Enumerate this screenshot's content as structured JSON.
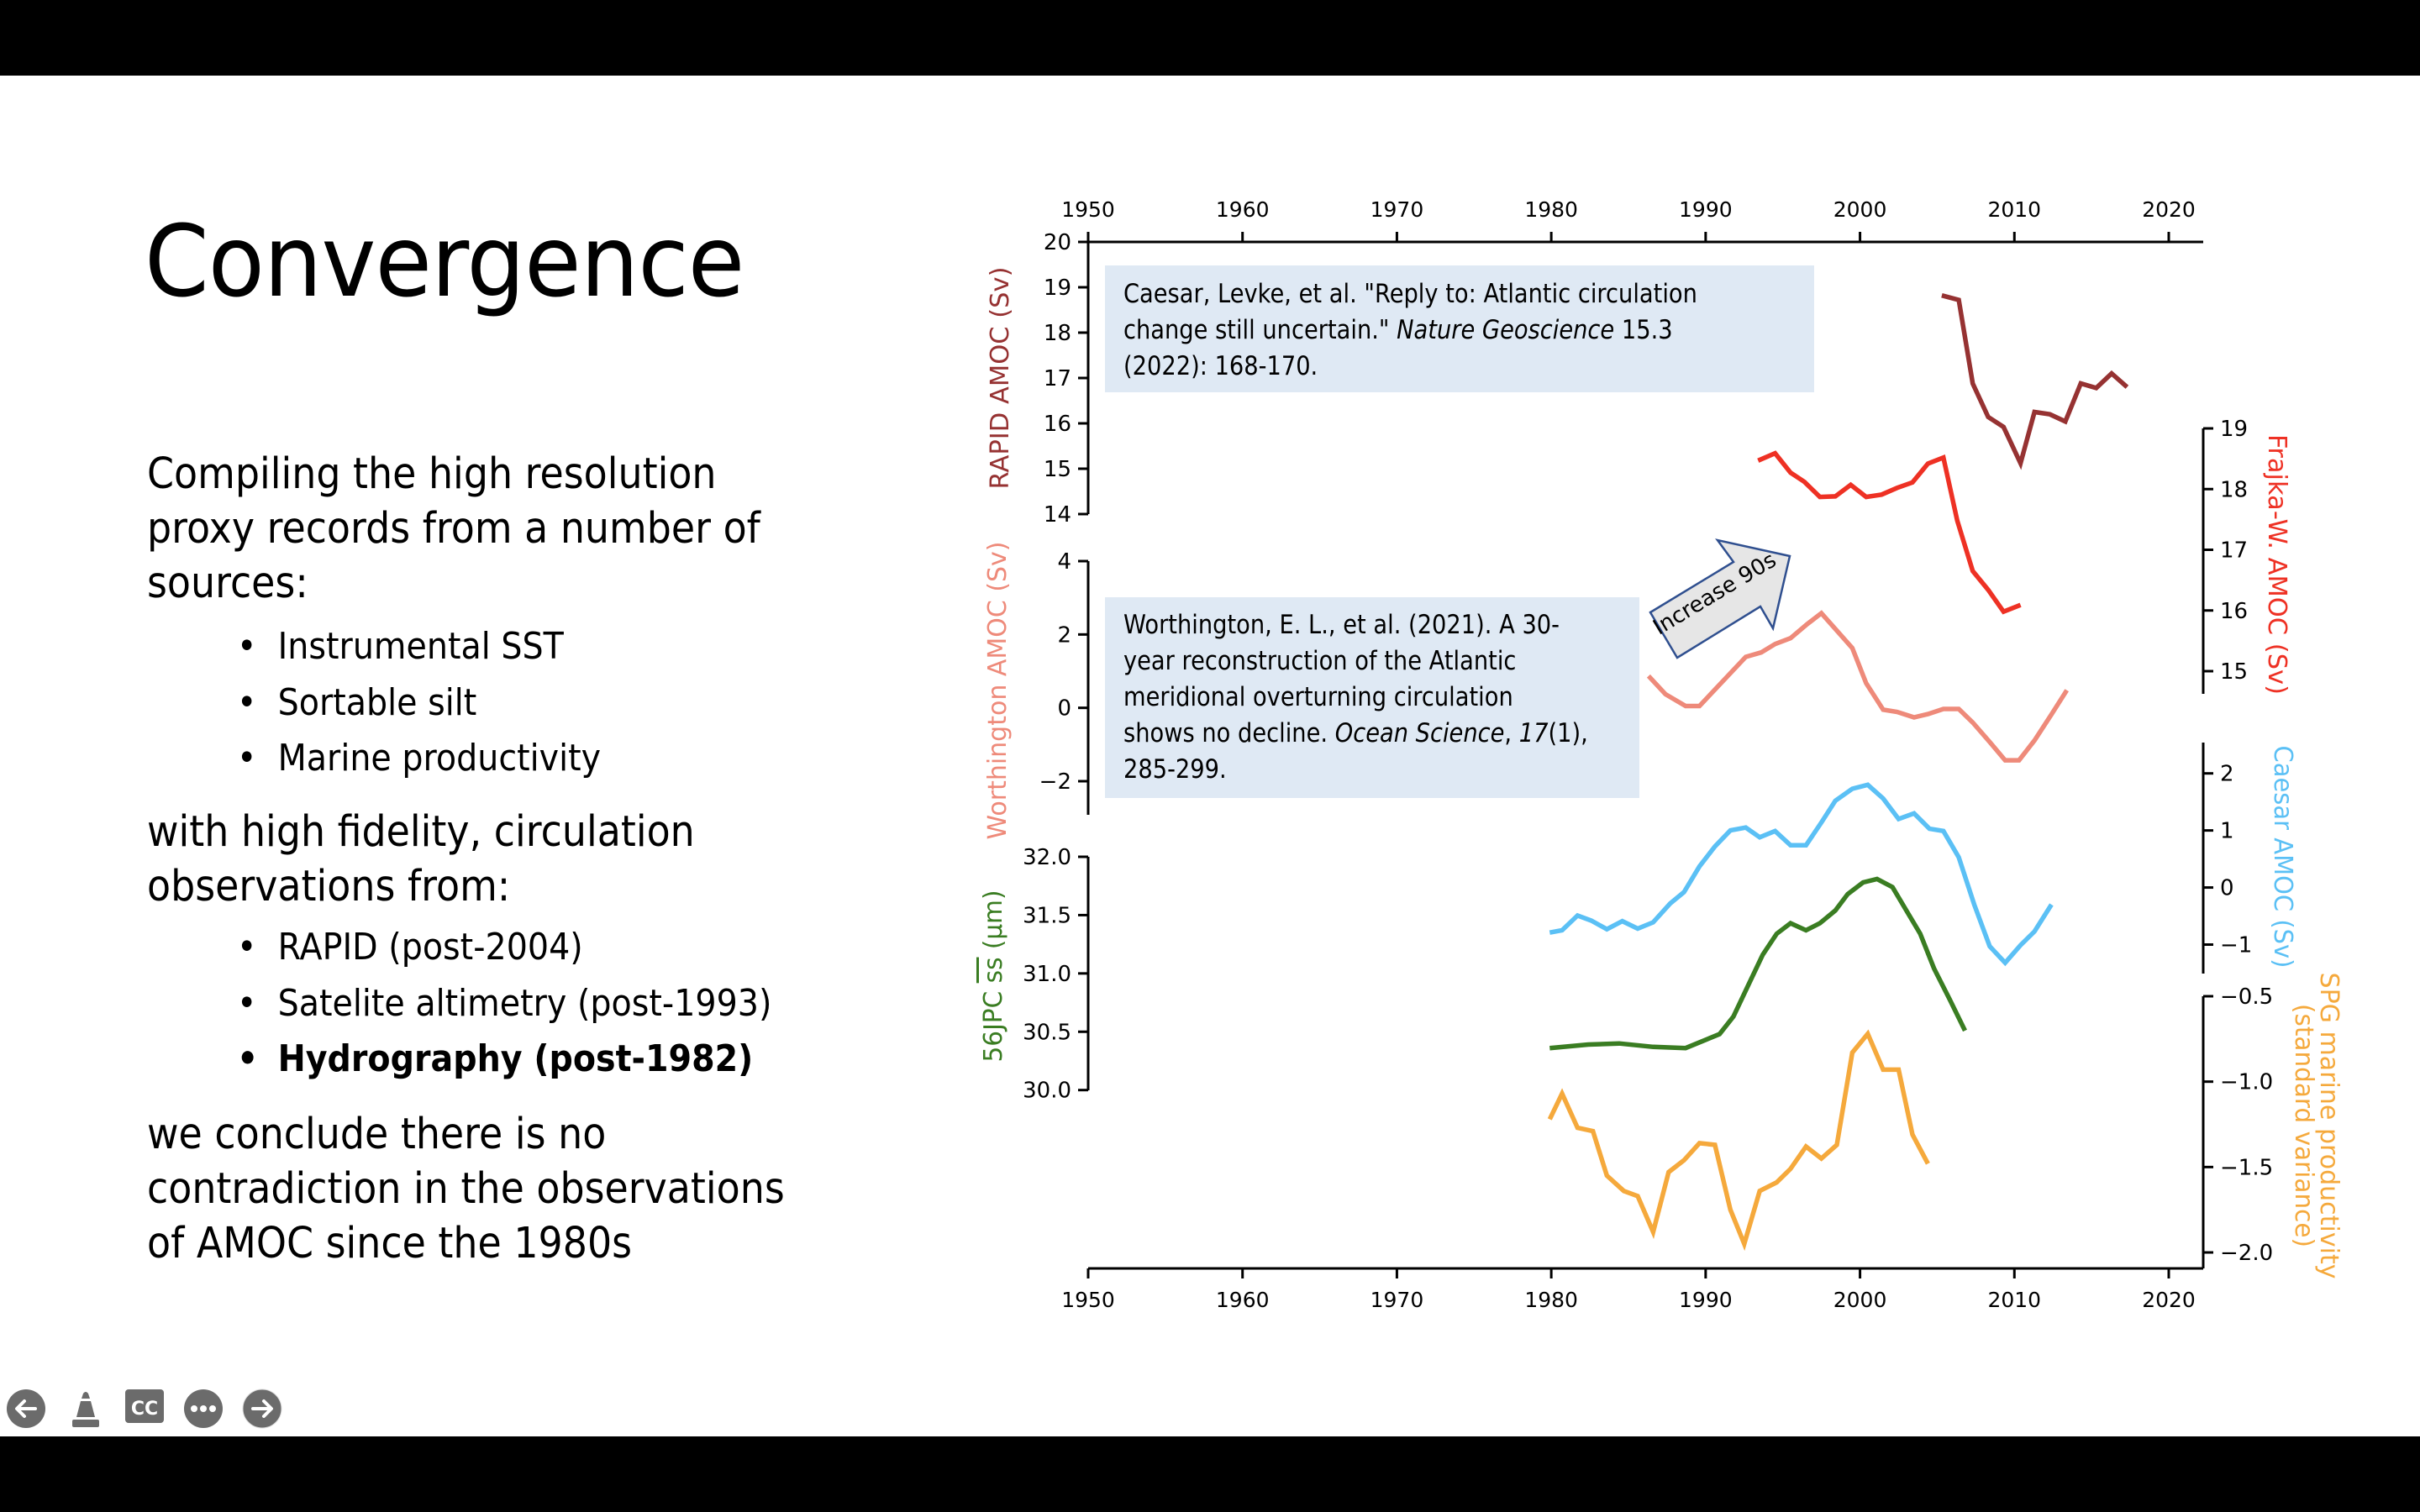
{
  "slide": {
    "title": "Convergence",
    "intro_lines": [
      "Compiling the high resolution",
      "proxy records from a number of",
      "sources:"
    ],
    "proxy_bullets": [
      "Instrumental SST",
      "Sortable silt",
      "Marine productivity"
    ],
    "middle_lines": [
      "with high fidelity, circulation",
      "observations from:"
    ],
    "observation_bullets": [
      "RAPID (post-2004)",
      "Satelite altimetry (post-1993)",
      "Hydrography (post-1982)"
    ],
    "conclusion_lines": [
      "we conclude there is no",
      "contradiction in the observations",
      "of AMOC since the 1980s"
    ],
    "bullet_glyph": "•"
  },
  "references": {
    "caesar": {
      "line1": "Caesar, Levke, et al. \"Reply to: Atlantic circulation",
      "line2_plain": "change still uncertain.\" ",
      "line2_italic": "Nature Geoscience",
      "line2_tail": " 15.3",
      "line3": "(2022): 168-170."
    },
    "worthington": {
      "line1": "Worthington, E. L., et al. (2021). A 30-",
      "line2": "year reconstruction of the Atlantic",
      "line3": "meridional overturning circulation",
      "line4_plain": "shows no decline. ",
      "line4_italic": "Ocean Science",
      "line4_mid": ", ",
      "line4_italic2": "17",
      "line4_tail": "(1),",
      "line5": "285-299."
    }
  },
  "annotation": {
    "arrow_label": "Increase 90s"
  },
  "controls": {
    "previous": "previous-slide",
    "pointer": "laser-pointer",
    "captions": "CC",
    "more": "more-options",
    "next": "next-slide"
  },
  "chart_data": {
    "type": "line",
    "title": "",
    "xlabel": "",
    "xlim": [
      1950,
      2023
    ],
    "x_ticks": [
      "1950",
      "1960",
      "1970",
      "1980",
      "1990",
      "2000",
      "2010",
      "2020"
    ],
    "x_tick_values": [
      1950,
      1960,
      1970,
      1980,
      1990,
      2000,
      2010,
      2020
    ],
    "grid": false,
    "series": [
      {
        "name": "RAPID AMOC",
        "axis_label": "RAPID AMOC (Sv)",
        "axis_side": "left",
        "color": "#963232",
        "ylim": [
          14,
          20
        ],
        "y_ticks": [
          "20",
          "19",
          "18",
          "17",
          "16",
          "15",
          "14"
        ],
        "y_tick_values": [
          20,
          19,
          18,
          17,
          16,
          15,
          14
        ],
        "x": [
          2005.3,
          2006.4,
          2007.3,
          2008.3,
          2009.3,
          2010.4,
          2011.3,
          2012.3,
          2013.3,
          2014.3,
          2015.3,
          2016.3,
          2017.3
        ],
        "y": [
          18.82,
          18.72,
          16.88,
          16.14,
          15.92,
          15.12,
          16.25,
          16.2,
          16.04,
          16.88,
          16.78,
          17.1,
          16.8
        ]
      },
      {
        "name": "Frajka-W. AMOC",
        "axis_label": "Frajka-W. AMOC (Sv)",
        "axis_side": "right",
        "color": "#ee3124",
        "ylim": [
          14.6,
          19
        ],
        "y_ticks": [
          "19",
          "18",
          "17",
          "16",
          "15"
        ],
        "y_tick_values": [
          19,
          18,
          17,
          16,
          15
        ],
        "x": [
          1993.4,
          1994.5,
          1995.5,
          1996.4,
          1997.4,
          1998.4,
          1999.4,
          2000.4,
          2001.4,
          2002.4,
          2003.4,
          2004.4,
          2005.4,
          2006.3,
          2007.3,
          2008.3,
          2009.3,
          2010.4
        ],
        "y": [
          18.47,
          18.59,
          18.27,
          18.12,
          17.87,
          17.88,
          18.07,
          17.87,
          17.91,
          18.02,
          18.11,
          18.42,
          18.52,
          17.48,
          16.65,
          16.34,
          15.98,
          16.09
        ]
      },
      {
        "name": "Worthington AMOC",
        "axis_label": "Worthington AMOC (Sv)",
        "axis_side": "left",
        "color": "#ee8a7a",
        "ylim": [
          -2.9,
          4
        ],
        "y_ticks": [
          "4",
          "2",
          "0",
          "−2"
        ],
        "y_tick_values": [
          4,
          2,
          0,
          -2
        ],
        "x": [
          1986.3,
          1987.4,
          1988.7,
          1989.6,
          1992.6,
          1993.6,
          1994.5,
          1995.5,
          1996.6,
          1997.5,
          1999.5,
          2000.4,
          2001.5,
          2002.4,
          2003.5,
          2004.4,
          2005.4,
          2006.4,
          2007.3,
          2008.4,
          2009.4,
          2010.3,
          2011.3,
          2012.4,
          2013.4
        ],
        "y": [
          0.87,
          0.37,
          0.05,
          0.05,
          1.39,
          1.51,
          1.74,
          1.9,
          2.29,
          2.58,
          1.63,
          0.67,
          -0.05,
          -0.11,
          -0.26,
          -0.17,
          -0.03,
          -0.03,
          -0.4,
          -0.93,
          -1.43,
          -1.43,
          -0.89,
          -0.18,
          0.48
        ]
      },
      {
        "name": "Caesar AMOC",
        "axis_label": "Caesar AMOC (Sv)",
        "axis_side": "right",
        "color": "#5bc0f5",
        "ylim": [
          -1.5,
          2.5
        ],
        "y_ticks": [
          "2",
          "1",
          "0",
          "−1"
        ],
        "y_tick_values": [
          2,
          1,
          0,
          -1
        ],
        "x": [
          1979.9,
          1980.7,
          1981.7,
          1982.6,
          1983.6,
          1984.6,
          1985.6,
          1986.6,
          1987.7,
          1988.6,
          1989.6,
          1990.6,
          1991.6,
          1992.6,
          1993.5,
          1994.5,
          1995.5,
          1996.5,
          1997.5,
          1998.4,
          1999.5,
          2000.5,
          2001.5,
          2002.5,
          2003.5,
          2004.5,
          2005.4,
          2006.4,
          2007.4,
          2008.4,
          2009.4,
          2010.4,
          2011.3,
          2012.4
        ],
        "y": [
          -0.79,
          -0.75,
          -0.49,
          -0.58,
          -0.73,
          -0.59,
          -0.72,
          -0.61,
          -0.28,
          -0.08,
          0.37,
          0.72,
          1.0,
          1.05,
          0.88,
          0.99,
          0.74,
          0.74,
          1.14,
          1.52,
          1.73,
          1.8,
          1.56,
          1.2,
          1.3,
          1.03,
          0.99,
          0.53,
          -0.3,
          -1.03,
          -1.32,
          -1.01,
          -0.77,
          -0.3
        ]
      },
      {
        "name": "56JPC sortable silt",
        "axis_label": "56JPC ss (μm)",
        "axis_label_prefix": "56JPC ",
        "axis_label_overlined": "ss",
        "axis_label_suffix": " (μm)",
        "axis_side": "left",
        "color": "#3a7d22",
        "ylim": [
          30,
          32
        ],
        "y_ticks": [
          "32.0",
          "31.5",
          "31.0",
          "30.5",
          "30.0"
        ],
        "y_tick_values": [
          32,
          31.5,
          31,
          30.5,
          30
        ],
        "x": [
          1979.9,
          1982.4,
          1984.4,
          1986.6,
          1988.7,
          1990.9,
          1991.8,
          1992.8,
          1993.7,
          1994.6,
          1995.5,
          1996.5,
          1997.4,
          1998.4,
          1999.2,
          2000.2,
          2001.1,
          2002.1,
          2003.0,
          2003.9,
          2004.8,
          2005.8,
          2006.8
        ],
        "y": [
          30.36,
          30.39,
          30.4,
          30.37,
          30.36,
          30.48,
          30.63,
          30.91,
          31.16,
          31.34,
          31.43,
          31.37,
          31.43,
          31.54,
          31.68,
          31.78,
          31.81,
          31.74,
          31.54,
          31.34,
          31.04,
          30.78,
          30.51
        ]
      },
      {
        "name": "SPG marine productivity",
        "axis_label_line1": "SPG marine productivity",
        "axis_label_line2": "(standard variance)",
        "axis_side": "right",
        "color": "#f5a93c",
        "ylim": [
          -2.1,
          -0.5
        ],
        "y_ticks": [
          "−0.5",
          "−1.0",
          "−1.5",
          "−2.0"
        ],
        "y_tick_values": [
          -0.5,
          -1.0,
          -1.5,
          -2.0
        ],
        "x": [
          1979.9,
          1980.7,
          1981.7,
          1982.7,
          1983.6,
          1984.7,
          1985.6,
          1986.6,
          1987.6,
          1988.6,
          1989.6,
          1990.6,
          1991.6,
          1992.5,
          1993.5,
          1994.6,
          1995.5,
          1996.5,
          1997.5,
          1998.5,
          1999.5,
          2000.5,
          2001.5,
          2002.5,
          2003.4,
          2004.4
        ],
        "y": [
          -1.22,
          -1.07,
          -1.27,
          -1.29,
          -1.55,
          -1.64,
          -1.67,
          -1.88,
          -1.53,
          -1.46,
          -1.36,
          -1.37,
          -1.75,
          -1.95,
          -1.64,
          -1.59,
          -1.51,
          -1.38,
          -1.45,
          -1.37,
          -0.83,
          -0.72,
          -0.93,
          -0.93,
          -1.31,
          -1.48
        ]
      }
    ]
  }
}
